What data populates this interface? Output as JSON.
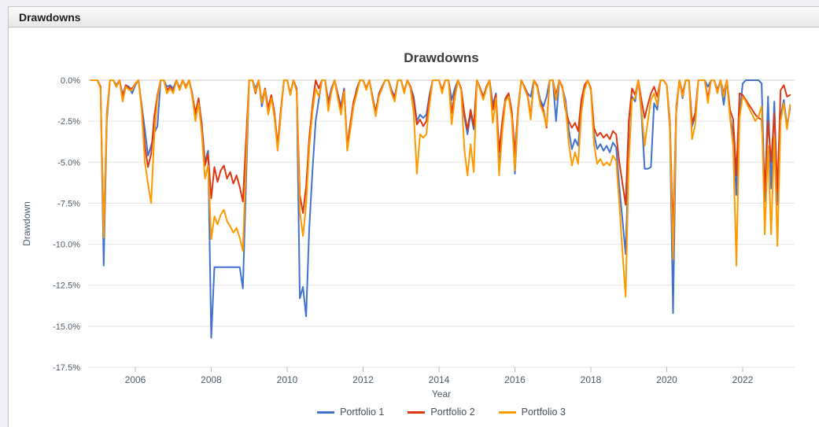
{
  "panel": {
    "title": "Drawdowns"
  },
  "chart_data": {
    "type": "line",
    "title": "Drawdowns",
    "xlabel": "Year",
    "ylabel": "Drawdown",
    "units": "percent",
    "x_interval": "monthly",
    "x_start_year": 2004.8333,
    "x_ticks": [
      2006,
      2008,
      2010,
      2012,
      2014,
      2016,
      2018,
      2020,
      2022
    ],
    "y_ticks": [
      0,
      -2.5,
      -5,
      -7.5,
      -10,
      -12.5,
      -15,
      -17.5
    ],
    "y_tick_labels": [
      "0.0%",
      "-2.5%",
      "-5.0%",
      "-7.5%",
      "-10.0%",
      "-12.5%",
      "-15.0%",
      "-17.5%"
    ],
    "ylim": [
      -17.5,
      0
    ],
    "grid": true,
    "legend_position": "bottom",
    "series": [
      {
        "name": "Portfolio 1",
        "color": "#4172D0",
        "values": [
          0,
          0,
          0,
          -0.4,
          -11.3,
          -2.5,
          0,
          0,
          -0.3,
          0,
          -0.9,
          -0.3,
          -0.4,
          -0.8,
          -0.3,
          0,
          -1.5,
          -3,
          -4.6,
          -4,
          -3.2,
          -2.8,
          0,
          0,
          -0.4,
          -0.3,
          -0.5,
          0,
          -0.6,
          0,
          -0.4,
          0,
          -0.8,
          -2.2,
          -1.2,
          -2.6,
          -5,
          -4.3,
          -15.7,
          -11.4,
          -11.4,
          -11.4,
          -11.4,
          -11.4,
          -11.4,
          -11.4,
          -11.4,
          -11.4,
          -12.7,
          -6.3,
          0,
          0,
          -0.5,
          0,
          -1.6,
          -0.6,
          -2,
          -1,
          -2.2,
          -4.2,
          -2,
          0,
          0,
          -0.9,
          0,
          -0.5,
          -13.3,
          -12.6,
          -14.4,
          -9,
          -5.5,
          -2.5,
          -1.2,
          0,
          0,
          -1.3,
          -0.5,
          0,
          -0.8,
          -1.6,
          -0.5,
          -4.2,
          -2.8,
          -1.4,
          -0.5,
          0,
          0,
          -0.5,
          0,
          -1,
          -2,
          -0.8,
          -0.4,
          0,
          0,
          -0.6,
          -1,
          0,
          0,
          -0.7,
          0,
          -0.4,
          -1,
          -2.5,
          -2.1,
          -2.3,
          -2.1,
          -0.9,
          0,
          0,
          0,
          -0.7,
          0,
          0,
          -1.2,
          -0.5,
          0,
          -0.5,
          -2.2,
          -3.3,
          -2,
          -3,
          0,
          -0.5,
          -1.1,
          -0.4,
          0,
          -1.5,
          -0.8,
          -5.4,
          -3,
          -1.2,
          -0.8,
          -2,
          -5.7,
          -2,
          0,
          -0.4,
          -0.8,
          -1,
          0,
          -0.3,
          -1.2,
          -1.6,
          -1,
          0,
          0,
          -2.5,
          0,
          -0.5,
          -1.2,
          -3,
          -4.2,
          -3.6,
          -4,
          -1.8,
          -0.5,
          0,
          -0.6,
          -3.3,
          -4.2,
          -3.9,
          -4.3,
          -4,
          -4.4,
          -3.8,
          -4.1,
          -6.5,
          -8.5,
          -10.6,
          -4.5,
          -1,
          -1.3,
          0,
          -2,
          -5.4,
          -5.4,
          -5.3,
          -1.4,
          -1.8,
          0,
          0,
          -0.3,
          -3,
          -14.2,
          -2,
          0,
          -1.1,
          0,
          0,
          -2.8,
          -2.2,
          0,
          0,
          0,
          -0.4,
          0,
          0,
          -0.6,
          0,
          -1.5,
          0,
          -2.2,
          -3.3,
          -7,
          -2.2,
          -0.2,
          0,
          0,
          0,
          0,
          0,
          -0.2,
          -7.4,
          -1,
          -6.6,
          -1.3,
          -7.6,
          -2.2,
          -1.2,
          -2.8,
          -1.7
        ]
      },
      {
        "name": "Portfolio 2",
        "color": "#DC3912",
        "values": [
          0,
          0,
          0,
          -0.4,
          -9.4,
          -2,
          0,
          0,
          -0.4,
          0,
          -1,
          -0.3,
          -0.5,
          -0.5,
          -0.2,
          0,
          -1.6,
          -4,
          -5.3,
          -4.5,
          -2.2,
          -0.9,
          0,
          0,
          -0.6,
          -0.4,
          -0.7,
          0,
          -0.5,
          0,
          -0.4,
          0,
          -0.9,
          -2,
          -1.1,
          -2.8,
          -5.2,
          -4.5,
          -7.2,
          -5.3,
          -6.2,
          -5.5,
          -5.2,
          -6,
          -5.6,
          -6.3,
          -5.8,
          -6.5,
          -7.4,
          -3.7,
          0,
          0,
          -0.8,
          0,
          -1.3,
          -0.5,
          -1.7,
          -0.9,
          -2,
          -4,
          -1.8,
          0,
          0,
          -0.8,
          0,
          -0.6,
          -7,
          -8.1,
          -6.5,
          -3.5,
          -1.5,
          0,
          -0.5,
          0,
          0,
          -1.5,
          -0.6,
          0,
          -0.9,
          -1.8,
          -0.6,
          -4,
          -2.6,
          -1.3,
          -0.6,
          0,
          0,
          -0.5,
          0,
          -1.1,
          -1.9,
          -0.9,
          -0.4,
          0,
          0,
          -0.7,
          -1.1,
          0,
          0,
          -0.7,
          0,
          -0.4,
          -1.2,
          -2.7,
          -2.4,
          -2.8,
          -2.5,
          -1.1,
          0,
          0,
          0,
          -0.6,
          0,
          0,
          -2,
          -0.8,
          0,
          -0.5,
          -2,
          -3,
          -1.8,
          -2.8,
          0,
          -0.5,
          -1,
          -0.4,
          0,
          -1.8,
          -0.9,
          -4.4,
          -2.5,
          -1.1,
          -0.8,
          -1.9,
          -4.5,
          -1.7,
          0,
          -0.4,
          -0.9,
          -2.2,
          0,
          -0.3,
          -1.4,
          -1.8,
          -2.9,
          0,
          0,
          -0.9,
          0,
          -0.4,
          -1.8,
          -2.5,
          -2.9,
          -2.6,
          -3.1,
          -1.2,
          -0.3,
          0,
          -0.5,
          -2.9,
          -3.4,
          -3.2,
          -3.5,
          -3.3,
          -3.6,
          -3.1,
          -3.3,
          -5,
          -6.3,
          -7.6,
          -2.5,
          -0.5,
          -0.9,
          0,
          -1.2,
          -2.3,
          -1.5,
          -0.8,
          -0.4,
          -1,
          0,
          0,
          -0.3,
          -2.5,
          -9.5,
          -1.6,
          0,
          -0.8,
          0,
          0,
          -2.6,
          -2,
          0,
          0,
          0,
          -1.1,
          0,
          0,
          -0.7,
          0,
          -0.8,
          0,
          -1.8,
          -2.4,
          -5.8,
          -0.8,
          -0.9,
          -1.2,
          -1.5,
          -1.8,
          -2.1,
          -2.3,
          -2.4,
          -6.8,
          -2.5,
          -5,
          -2,
          -6.8,
          -0.6,
          -0.3,
          -1,
          -0.9
        ]
      },
      {
        "name": "Portfolio 3",
        "color": "#FF9900",
        "values": [
          0,
          0,
          0,
          -0.5,
          -9.6,
          -2.2,
          0,
          0,
          -0.4,
          0,
          -1.3,
          -0.4,
          -0.6,
          -0.6,
          -0.2,
          0,
          -1.8,
          -5,
          -6.3,
          -7.5,
          -3.4,
          -1.1,
          0,
          0,
          -0.8,
          -0.5,
          -0.8,
          0,
          -0.6,
          0,
          -0.5,
          0,
          -1,
          -2.5,
          -1.4,
          -3.2,
          -6,
          -5.2,
          -9.7,
          -8.3,
          -8.8,
          -8.2,
          -7.9,
          -8.6,
          -8.9,
          -9.3,
          -9,
          -9.6,
          -10.4,
          -5.1,
          0,
          0,
          -0.7,
          0,
          -1.4,
          -0.6,
          -2.1,
          -1.1,
          -2.3,
          -4.3,
          -2.1,
          0,
          0,
          -0.9,
          0,
          -0.7,
          -8,
          -9.5,
          -7.6,
          -4.1,
          -1.9,
          -0.5,
          -1,
          0,
          0,
          -1.9,
          -0.7,
          0,
          -1.1,
          -2.1,
          -0.7,
          -4.3,
          -3,
          -1.6,
          -0.8,
          0,
          0,
          -0.6,
          0,
          -1.2,
          -2.2,
          -1,
          -0.5,
          0,
          0,
          -0.8,
          -1.3,
          0,
          0,
          -0.8,
          0,
          -0.5,
          -2,
          -5.7,
          -3.3,
          -3.5,
          -3.3,
          -1.5,
          0,
          0,
          0,
          -0.8,
          0,
          0,
          -2.7,
          -1.1,
          0,
          -0.6,
          -4.2,
          -5.8,
          -3.9,
          -5.6,
          0,
          -0.6,
          -1.2,
          -0.5,
          0,
          -2.6,
          -1.1,
          -5.8,
          -3.2,
          -1.3,
          -1,
          -2.3,
          -5.5,
          -1.9,
          0,
          -0.5,
          -1,
          -2.4,
          0,
          -0.4,
          -1.5,
          -2,
          -2.8,
          0,
          0,
          -1.2,
          0,
          -0.5,
          -1.5,
          -3.8,
          -5.2,
          -4.4,
          -5.1,
          -2,
          -0.6,
          0,
          -0.6,
          -3.9,
          -5.1,
          -4.8,
          -5.2,
          -5,
          -5.2,
          -4.6,
          -4.9,
          -7.5,
          -10.5,
          -13.2,
          -5,
          -1.2,
          -1.1,
          0,
          -1.8,
          -4,
          -2.5,
          -1.2,
          -0.8,
          -1.5,
          0,
          0,
          -0.3,
          -2.8,
          -10.9,
          -1.8,
          0,
          -1,
          0,
          0,
          -3.6,
          -2.7,
          0,
          0,
          0,
          -1.4,
          0,
          0,
          -0.8,
          0,
          -1,
          0,
          -2.3,
          -4,
          -11.3,
          -2.3,
          -1,
          -1.3,
          -1.7,
          -2.1,
          -2.5,
          -2.2,
          -1.6,
          -9.4,
          -4,
          -9.4,
          -3.5,
          -10.1,
          -2.5,
          -1.4,
          -3,
          -1.5
        ]
      }
    ]
  }
}
